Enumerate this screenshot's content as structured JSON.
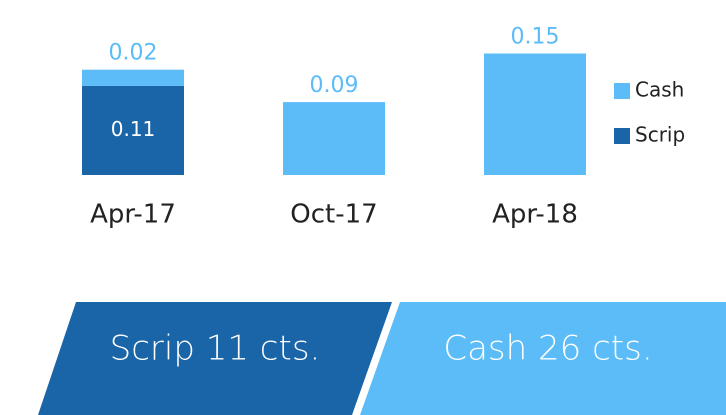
{
  "chart_data": {
    "type": "bar",
    "stacked": true,
    "categories": [
      "Apr-17",
      "Oct-17",
      "Apr-18"
    ],
    "series": [
      {
        "name": "Scrip",
        "color": "#1a64a8",
        "values": [
          0.11,
          null,
          null
        ]
      },
      {
        "name": "Cash",
        "color": "#5bbcf8",
        "values": [
          0.02,
          0.09,
          0.15
        ]
      }
    ]
  },
  "banners": [
    {
      "text": "Scrip 11 cts.",
      "color": "#1a64a8"
    },
    {
      "text": "Cash 26 cts.",
      "color": "#5bbcf8"
    }
  ]
}
